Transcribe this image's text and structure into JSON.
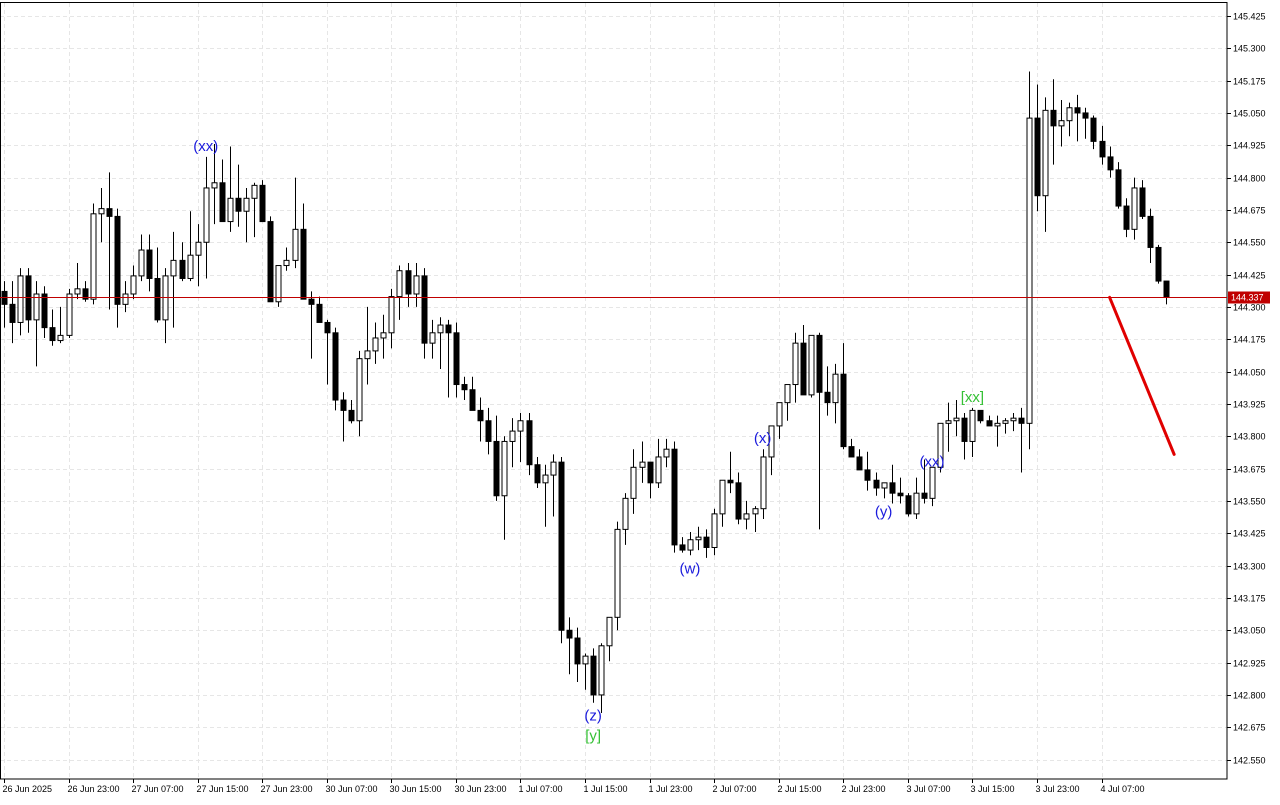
{
  "chart_data": {
    "type": "candlestick",
    "instrument_timeframe_note": "",
    "y_axis": {
      "min": 142.475,
      "max": 145.475,
      "ticks": [
        "145.425",
        "145.300",
        "145.175",
        "145.050",
        "144.925",
        "144.800",
        "144.675",
        "144.550",
        "144.425",
        "144.300",
        "144.175",
        "144.050",
        "143.925",
        "143.800",
        "143.675",
        "143.550",
        "143.425",
        "143.300",
        "143.175",
        "143.050",
        "142.925",
        "142.800",
        "142.675",
        "142.550"
      ]
    },
    "x_axis": {
      "ticks": [
        {
          "label": "26 Jun 2025",
          "bar": 0
        },
        {
          "label": "26 Jun 23:00",
          "bar": 8
        },
        {
          "label": "27 Jun 07:00",
          "bar": 16
        },
        {
          "label": "27 Jun 15:00",
          "bar": 24
        },
        {
          "label": "27 Jun 23:00",
          "bar": 32
        },
        {
          "label": "30 Jun 07:00",
          "bar": 40
        },
        {
          "label": "30 Jun 15:00",
          "bar": 48
        },
        {
          "label": "30 Jun 23:00",
          "bar": 56
        },
        {
          "label": "1 Jul 07:00",
          "bar": 64
        },
        {
          "label": "1 Jul 15:00",
          "bar": 72
        },
        {
          "label": "1 Jul 23:00",
          "bar": 80
        },
        {
          "label": "2 Jul 07:00",
          "bar": 88
        },
        {
          "label": "2 Jul 15:00",
          "bar": 96
        },
        {
          "label": "2 Jul 23:00",
          "bar": 104
        },
        {
          "label": "3 Jul 07:00",
          "bar": 112
        },
        {
          "label": "3 Jul 15:00",
          "bar": 120
        },
        {
          "label": "3 Jul 23:00",
          "bar": 128
        },
        {
          "label": "4 Jul 07:00",
          "bar": 136
        }
      ]
    },
    "current_price": {
      "value": 144.337,
      "label": "144.337",
      "color": "#c00000"
    },
    "forecast_arrow": {
      "from_bar": 137,
      "from_price": 144.337,
      "to_bar": 145,
      "to_price": 143.73,
      "color": "#e00000"
    },
    "colors": {
      "bull_body": "#ffffff",
      "bear_body": "#000000",
      "wick": "#000000",
      "grid": "#e6e6e6",
      "wave_blue": "#1a1adc",
      "wave_green": "#35c035"
    },
    "ohlc": [
      [
        144.36,
        144.4,
        144.22,
        144.31
      ],
      [
        144.31,
        144.4,
        144.16,
        144.24
      ],
      [
        144.24,
        144.45,
        144.19,
        144.42
      ],
      [
        144.42,
        144.45,
        144.2,
        144.25
      ],
      [
        144.25,
        144.4,
        144.07,
        144.35
      ],
      [
        144.35,
        144.38,
        144.18,
        144.22
      ],
      [
        144.22,
        144.29,
        144.15,
        144.17
      ],
      [
        144.17,
        144.3,
        144.16,
        144.19
      ],
      [
        144.19,
        144.37,
        144.18,
        144.35
      ],
      [
        144.35,
        144.47,
        144.33,
        144.37
      ],
      [
        144.37,
        144.4,
        144.32,
        144.33
      ],
      [
        144.33,
        144.7,
        144.31,
        144.66
      ],
      [
        144.66,
        144.76,
        144.55,
        144.68
      ],
      [
        144.68,
        144.82,
        144.29,
        144.65
      ],
      [
        144.65,
        144.68,
        144.22,
        144.31
      ],
      [
        144.31,
        144.4,
        144.28,
        144.35
      ],
      [
        144.35,
        144.46,
        144.33,
        144.42
      ],
      [
        144.42,
        144.58,
        144.4,
        144.52
      ],
      [
        144.52,
        144.58,
        144.36,
        144.41
      ],
      [
        144.41,
        144.53,
        144.24,
        144.25
      ],
      [
        144.25,
        144.45,
        144.16,
        144.42
      ],
      [
        144.42,
        144.59,
        144.22,
        144.48
      ],
      [
        144.48,
        144.55,
        144.4,
        144.41
      ],
      [
        144.41,
        144.67,
        144.4,
        144.5
      ],
      [
        144.5,
        144.62,
        144.38,
        144.55
      ],
      [
        144.55,
        144.88,
        144.41,
        144.76
      ],
      [
        144.76,
        144.93,
        144.62,
        144.78
      ],
      [
        144.78,
        144.87,
        144.65,
        144.63
      ],
      [
        144.63,
        144.92,
        144.59,
        144.72
      ],
      [
        144.72,
        144.85,
        144.61,
        144.67
      ],
      [
        144.67,
        144.76,
        144.55,
        144.72
      ],
      [
        144.72,
        144.78,
        144.57,
        144.77
      ],
      [
        144.77,
        144.79,
        144.64,
        144.63
      ],
      [
        144.63,
        144.65,
        144.33,
        144.32
      ],
      [
        144.32,
        144.45,
        144.3,
        144.46
      ],
      [
        144.46,
        144.53,
        144.44,
        144.48
      ],
      [
        144.48,
        144.8,
        144.45,
        144.6
      ],
      [
        144.6,
        144.7,
        144.35,
        144.33
      ],
      [
        144.33,
        144.36,
        144.1,
        144.31
      ],
      [
        144.31,
        144.34,
        144.25,
        144.24
      ],
      [
        144.24,
        144.25,
        144.0,
        144.2
      ],
      [
        144.2,
        144.22,
        143.9,
        143.94
      ],
      [
        143.94,
        143.97,
        143.78,
        143.9
      ],
      [
        143.9,
        143.94,
        143.85,
        143.86
      ],
      [
        143.86,
        144.13,
        143.8,
        144.1
      ],
      [
        144.1,
        144.3,
        144.0,
        144.13
      ],
      [
        144.13,
        144.24,
        144.08,
        144.18
      ],
      [
        144.18,
        144.27,
        144.1,
        144.2
      ],
      [
        144.2,
        144.37,
        144.14,
        144.34
      ],
      [
        144.34,
        144.46,
        144.25,
        144.44
      ],
      [
        144.44,
        144.47,
        144.3,
        144.35
      ],
      [
        144.35,
        144.47,
        144.3,
        144.42
      ],
      [
        144.42,
        144.45,
        144.1,
        144.16
      ],
      [
        144.16,
        144.25,
        144.1,
        144.2
      ],
      [
        144.2,
        144.26,
        144.06,
        144.23
      ],
      [
        144.23,
        144.25,
        143.95,
        144.2
      ],
      [
        144.2,
        144.24,
        143.95,
        144.0
      ],
      [
        144.0,
        144.03,
        143.94,
        143.98
      ],
      [
        143.98,
        144.03,
        143.92,
        143.9
      ],
      [
        143.9,
        143.95,
        143.78,
        143.86
      ],
      [
        143.86,
        143.91,
        143.73,
        143.78
      ],
      [
        143.78,
        143.88,
        143.55,
        143.57
      ],
      [
        143.57,
        143.8,
        143.4,
        143.78
      ],
      [
        143.78,
        143.87,
        143.68,
        143.82
      ],
      [
        143.82,
        143.89,
        143.7,
        143.86
      ],
      [
        143.86,
        143.89,
        143.65,
        143.69
      ],
      [
        143.69,
        143.72,
        143.6,
        143.62
      ],
      [
        143.62,
        143.69,
        143.45,
        143.65
      ],
      [
        143.65,
        143.73,
        143.49,
        143.7
      ],
      [
        143.7,
        143.72,
        143.0,
        143.05
      ],
      [
        143.05,
        143.1,
        142.88,
        143.02
      ],
      [
        143.02,
        143.06,
        142.85,
        142.92
      ],
      [
        142.92,
        142.96,
        142.82,
        142.95
      ],
      [
        142.95,
        142.98,
        142.77,
        142.8
      ],
      [
        142.8,
        143.0,
        142.73,
        142.99
      ],
      [
        142.99,
        143.1,
        142.93,
        143.1
      ],
      [
        143.1,
        143.47,
        143.05,
        143.44
      ],
      [
        143.44,
        143.58,
        143.38,
        143.56
      ],
      [
        143.56,
        143.75,
        143.5,
        143.68
      ],
      [
        143.68,
        143.78,
        143.62,
        143.7
      ],
      [
        143.7,
        143.68,
        143.56,
        143.62
      ],
      [
        143.62,
        143.79,
        143.6,
        143.72
      ],
      [
        143.72,
        143.79,
        143.68,
        143.75
      ],
      [
        143.75,
        143.78,
        143.35,
        143.38
      ],
      [
        143.38,
        143.41,
        143.35,
        143.36
      ],
      [
        143.36,
        143.43,
        143.34,
        143.4
      ],
      [
        143.4,
        143.45,
        143.36,
        143.41
      ],
      [
        143.41,
        143.44,
        143.33,
        143.37
      ],
      [
        143.37,
        143.52,
        143.34,
        143.5
      ],
      [
        143.5,
        143.61,
        143.45,
        143.63
      ],
      [
        143.63,
        143.74,
        143.58,
        143.62
      ],
      [
        143.62,
        143.66,
        143.46,
        143.48
      ],
      [
        143.48,
        143.55,
        143.44,
        143.5
      ],
      [
        143.5,
        143.53,
        143.43,
        143.52
      ],
      [
        143.52,
        143.75,
        143.48,
        143.72
      ],
      [
        143.72,
        143.84,
        143.65,
        143.84
      ],
      [
        143.84,
        143.92,
        143.79,
        143.93
      ],
      [
        143.93,
        144.0,
        143.86,
        144.0
      ],
      [
        144.0,
        144.2,
        143.93,
        144.16
      ],
      [
        144.16,
        144.23,
        143.96,
        143.96
      ],
      [
        143.96,
        144.18,
        143.95,
        144.19
      ],
      [
        144.19,
        144.2,
        143.44,
        143.97
      ],
      [
        143.97,
        144.07,
        143.88,
        143.93
      ],
      [
        143.93,
        144.08,
        143.85,
        144.04
      ],
      [
        144.04,
        144.16,
        143.75,
        143.76
      ],
      [
        143.76,
        143.79,
        143.72,
        143.72
      ],
      [
        143.72,
        143.75,
        143.67,
        143.67
      ],
      [
        143.67,
        143.74,
        143.59,
        143.63
      ],
      [
        143.63,
        143.66,
        143.57,
        143.6
      ],
      [
        143.6,
        143.62,
        143.56,
        143.62
      ],
      [
        143.62,
        143.69,
        143.54,
        143.58
      ],
      [
        143.58,
        143.64,
        143.54,
        143.57
      ],
      [
        143.57,
        143.58,
        143.49,
        143.5
      ],
      [
        143.5,
        143.64,
        143.48,
        143.58
      ],
      [
        143.58,
        143.71,
        143.54,
        143.56
      ],
      [
        143.56,
        143.66,
        143.53,
        143.68
      ],
      [
        143.68,
        143.85,
        143.66,
        143.85
      ],
      [
        143.85,
        143.93,
        143.74,
        143.86
      ],
      [
        143.86,
        143.94,
        143.8,
        143.87
      ],
      [
        143.87,
        143.89,
        143.71,
        143.78
      ],
      [
        143.78,
        143.91,
        143.72,
        143.9
      ],
      [
        143.9,
        143.89,
        143.85,
        143.86
      ],
      [
        143.86,
        143.88,
        143.84,
        143.84
      ],
      [
        143.84,
        143.88,
        143.76,
        143.85
      ],
      [
        143.85,
        143.87,
        143.81,
        143.86
      ],
      [
        143.86,
        143.89,
        143.82,
        143.87
      ],
      [
        143.87,
        143.91,
        143.66,
        143.85
      ],
      [
        143.85,
        145.21,
        143.75,
        145.03
      ],
      [
        145.03,
        145.16,
        144.67,
        144.73
      ],
      [
        144.73,
        145.11,
        144.59,
        145.06
      ],
      [
        145.06,
        145.18,
        144.85,
        145.0
      ],
      [
        145.0,
        145.1,
        144.92,
        145.02
      ],
      [
        145.02,
        145.09,
        144.96,
        145.07
      ],
      [
        145.07,
        145.12,
        144.94,
        145.05
      ],
      [
        145.05,
        145.07,
        144.95,
        145.03
      ],
      [
        145.03,
        145.04,
        144.91,
        144.94
      ],
      [
        144.94,
        145.0,
        144.85,
        144.88
      ],
      [
        144.88,
        144.92,
        144.8,
        144.83
      ],
      [
        144.83,
        144.86,
        144.68,
        144.69
      ],
      [
        144.69,
        144.72,
        144.57,
        144.6
      ],
      [
        144.6,
        144.8,
        144.56,
        144.76
      ],
      [
        144.76,
        144.79,
        144.64,
        144.65
      ],
      [
        144.65,
        144.68,
        144.47,
        144.53
      ],
      [
        144.53,
        144.54,
        144.39,
        144.4
      ],
      [
        144.4,
        144.4,
        144.31,
        144.34
      ]
    ],
    "wave_labels": [
      {
        "text": "(xx)",
        "bar": 25,
        "anchor": "above",
        "color": "blue"
      },
      {
        "text": "(z)",
        "bar": 73,
        "anchor": "below",
        "color": "blue"
      },
      {
        "text": "[y]",
        "bar": 73,
        "anchor": "below2",
        "color": "green"
      },
      {
        "text": "(w)",
        "bar": 85,
        "anchor": "below",
        "color": "blue"
      },
      {
        "text": "(x)",
        "bar": 94,
        "anchor": "above",
        "color": "blue"
      },
      {
        "text": "(y)",
        "bar": 109,
        "anchor": "below",
        "color": "blue"
      },
      {
        "text": "(xx)",
        "bar": 115,
        "anchor": "above",
        "color": "blue"
      },
      {
        "text": "[xx]",
        "bar": 120,
        "anchor": "above",
        "color": "green"
      }
    ]
  }
}
